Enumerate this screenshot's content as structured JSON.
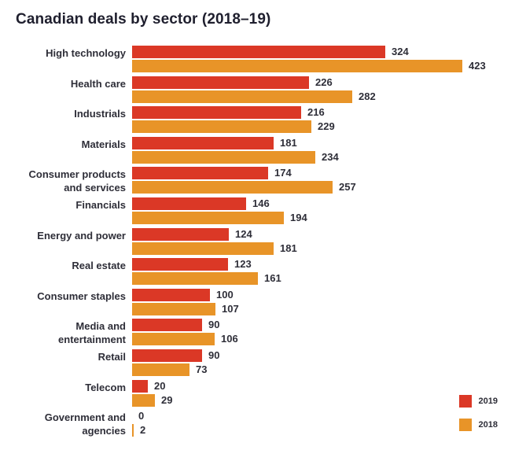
{
  "chart_data": {
    "type": "bar",
    "orientation": "horizontal",
    "title": "Canadian deals by sector (2018–19)",
    "categories": [
      "High technology",
      "Health care",
      "Industrials",
      "Materials",
      "Consumer products and services",
      "Financials",
      "Energy and power",
      "Real estate",
      "Consumer staples",
      "Media and entertainment",
      "Retail",
      "Telecom",
      "Government and agencies"
    ],
    "series": [
      {
        "name": "2019",
        "color": "#db3826",
        "values": [
          324,
          226,
          216,
          181,
          174,
          146,
          124,
          123,
          100,
          90,
          90,
          20,
          0
        ]
      },
      {
        "name": "2018",
        "color": "#e89428",
        "values": [
          423,
          282,
          229,
          234,
          257,
          194,
          181,
          161,
          107,
          106,
          73,
          29,
          2
        ]
      }
    ],
    "xlabel": "",
    "ylabel": "",
    "xlim": [
      0,
      423
    ],
    "grid": false,
    "legend_position": "bottom-right",
    "value_labels": true
  }
}
